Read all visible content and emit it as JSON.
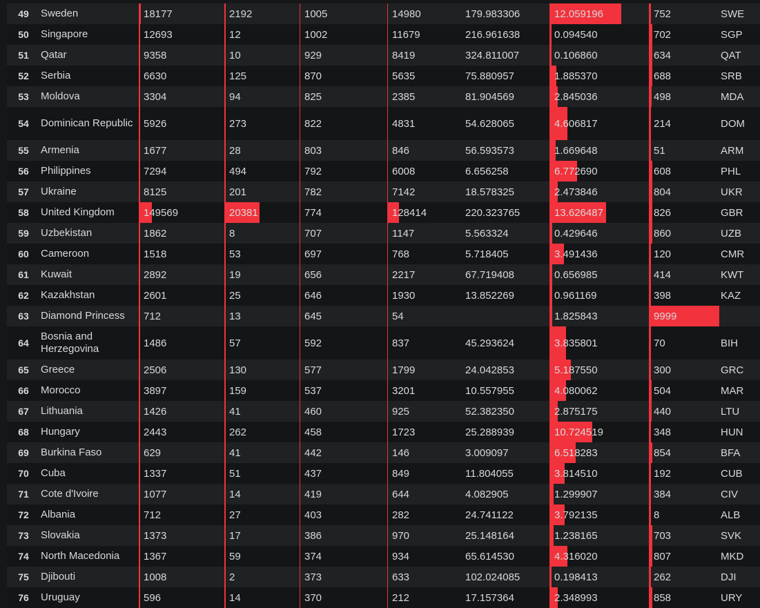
{
  "colors": {
    "bar": "#f2323c",
    "row_odd": "#1f2123",
    "row_even": "#141517",
    "text": "#d8d9da"
  },
  "rows": [
    {
      "rank": "49",
      "country": "Sweden",
      "cases": "18177",
      "deaths": "2192",
      "rank2": "1005",
      "active": "14980",
      "per_million": "179.983306",
      "mortality": "12.059196",
      "code_num": "752",
      "iso": "SWE",
      "cases_frac": 0.02,
      "deaths_frac": 0.02,
      "active_frac": 0.01,
      "mort_frac": 0.71,
      "num_frac": 0.02
    },
    {
      "rank": "50",
      "country": "Singapore",
      "cases": "12693",
      "deaths": "12",
      "rank2": "1002",
      "active": "11679",
      "per_million": "216.961638",
      "mortality": "0.094540",
      "code_num": "702",
      "iso": "SGP",
      "cases_frac": 0.01,
      "deaths_frac": 0,
      "active_frac": 0.01,
      "mort_frac": 0.02,
      "num_frac": 0.05
    },
    {
      "rank": "51",
      "country": "Qatar",
      "cases": "9358",
      "deaths": "10",
      "rank2": "929",
      "active": "8419",
      "per_million": "324.811007",
      "mortality": "0.106860",
      "code_num": "634",
      "iso": "QAT",
      "cases_frac": 0,
      "deaths_frac": 0,
      "active_frac": 0,
      "mort_frac": 0.02,
      "num_frac": 0.05
    },
    {
      "rank": "52",
      "country": "Serbia",
      "cases": "6630",
      "deaths": "125",
      "rank2": "870",
      "active": "5635",
      "per_million": "75.880957",
      "mortality": "1.885370",
      "code_num": "688",
      "iso": "SRB",
      "cases_frac": 0.01,
      "deaths_frac": 0.01,
      "active_frac": 0.01,
      "mort_frac": 0.07,
      "num_frac": 0.05
    },
    {
      "rank": "53",
      "country": "Moldova",
      "cases": "3304",
      "deaths": "94",
      "rank2": "825",
      "active": "2385",
      "per_million": "81.904569",
      "mortality": "2.845036",
      "code_num": "498",
      "iso": "MDA",
      "cases_frac": 0.01,
      "deaths_frac": 0.01,
      "active_frac": 0.01,
      "mort_frac": 0.08,
      "num_frac": 0.04
    },
    {
      "rank": "54",
      "country": "Dominican Republic",
      "cases": "5926",
      "deaths": "273",
      "rank2": "822",
      "active": "4831",
      "per_million": "54.628065",
      "mortality": "4.606817",
      "code_num": "214",
      "iso": "DOM",
      "cases_frac": 0.01,
      "deaths_frac": 0.01,
      "active_frac": 0.01,
      "mort_frac": 0.18,
      "num_frac": 0.02
    },
    {
      "rank": "55",
      "country": "Armenia",
      "cases": "1677",
      "deaths": "28",
      "rank2": "803",
      "active": "846",
      "per_million": "56.593573",
      "mortality": "1.669648",
      "code_num": "51",
      "iso": "ARM",
      "cases_frac": 0,
      "deaths_frac": 0,
      "active_frac": 0,
      "mort_frac": 0.06,
      "num_frac": 0
    },
    {
      "rank": "56",
      "country": "Philippines",
      "cases": "7294",
      "deaths": "494",
      "rank2": "792",
      "active": "6008",
      "per_million": "6.656258",
      "mortality": "6.772690",
      "code_num": "608",
      "iso": "PHL",
      "cases_frac": 0.01,
      "deaths_frac": 0.02,
      "active_frac": 0.01,
      "mort_frac": 0.27,
      "num_frac": 0.05
    },
    {
      "rank": "57",
      "country": "Ukraine",
      "cases": "8125",
      "deaths": "201",
      "rank2": "782",
      "active": "7142",
      "per_million": "18.578325",
      "mortality": "2.473846",
      "code_num": "804",
      "iso": "UKR",
      "cases_frac": 0.01,
      "deaths_frac": 0.01,
      "active_frac": 0.01,
      "mort_frac": 0.08,
      "num_frac": 0.05
    },
    {
      "rank": "58",
      "country": "United Kingdom",
      "cases": "149569",
      "deaths": "20381",
      "rank2": "774",
      "active": "128414",
      "per_million": "220.323765",
      "mortality": "13.626487",
      "code_num": "826",
      "iso": "GBR",
      "cases_frac": 0.15,
      "deaths_frac": 0.45,
      "active_frac": 0.16,
      "mort_frac": 0.56,
      "num_frac": 0.05
    },
    {
      "rank": "59",
      "country": "Uzbekistan",
      "cases": "1862",
      "deaths": "8",
      "rank2": "707",
      "active": "1147",
      "per_million": "5.563324",
      "mortality": "0.429646",
      "code_num": "860",
      "iso": "UZB",
      "cases_frac": 0,
      "deaths_frac": 0,
      "active_frac": 0,
      "mort_frac": 0.03,
      "num_frac": 0.05
    },
    {
      "rank": "60",
      "country": "Cameroon",
      "cases": "1518",
      "deaths": "53",
      "rank2": "697",
      "active": "768",
      "per_million": "5.718405",
      "mortality": "3.491436",
      "code_num": "120",
      "iso": "CMR",
      "cases_frac": 0,
      "deaths_frac": 0,
      "active_frac": 0,
      "mort_frac": 0.14,
      "num_frac": 0
    },
    {
      "rank": "61",
      "country": "Kuwait",
      "cases": "2892",
      "deaths": "19",
      "rank2": "656",
      "active": "2217",
      "per_million": "67.719408",
      "mortality": "0.656985",
      "code_num": "414",
      "iso": "KWT",
      "cases_frac": 0,
      "deaths_frac": 0,
      "active_frac": 0,
      "mort_frac": 0.03,
      "num_frac": 0.03
    },
    {
      "rank": "62",
      "country": "Kazakhstan",
      "cases": "2601",
      "deaths": "25",
      "rank2": "646",
      "active": "1930",
      "per_million": "13.852269",
      "mortality": "0.961169",
      "code_num": "398",
      "iso": "KAZ",
      "cases_frac": 0,
      "deaths_frac": 0,
      "active_frac": 0,
      "mort_frac": 0.03,
      "num_frac": 0.03
    },
    {
      "rank": "63",
      "country": "Diamond Princess",
      "cases": "712",
      "deaths": "13",
      "rank2": "645",
      "active": "54",
      "per_million": "",
      "mortality": "1.825843",
      "code_num": "9999",
      "iso": "",
      "cases_frac": 0,
      "deaths_frac": 0,
      "active_frac": 0,
      "mort_frac": 0.03,
      "num_frac": 1.0
    },
    {
      "rank": "64",
      "country": "Bosnia and Herzegovina",
      "cases": "1486",
      "deaths": "57",
      "rank2": "592",
      "active": "837",
      "per_million": "45.293624",
      "mortality": "3.835801",
      "code_num": "70",
      "iso": "BIH",
      "cases_frac": 0,
      "deaths_frac": 0,
      "active_frac": 0,
      "mort_frac": 0.16,
      "num_frac": 0
    },
    {
      "rank": "65",
      "country": "Greece",
      "cases": "2506",
      "deaths": "130",
      "rank2": "577",
      "active": "1799",
      "per_million": "24.042853",
      "mortality": "5.187550",
      "code_num": "300",
      "iso": "GRC",
      "cases_frac": 0,
      "deaths_frac": 0,
      "active_frac": 0,
      "mort_frac": 0.21,
      "num_frac": 0
    },
    {
      "rank": "66",
      "country": "Morocco",
      "cases": "3897",
      "deaths": "159",
      "rank2": "537",
      "active": "3201",
      "per_million": "10.557955",
      "mortality": "4.080062",
      "code_num": "504",
      "iso": "MAR",
      "cases_frac": 0,
      "deaths_frac": 0,
      "active_frac": 0,
      "mort_frac": 0.16,
      "num_frac": 0.04
    },
    {
      "rank": "67",
      "country": "Lithuania",
      "cases": "1426",
      "deaths": "41",
      "rank2": "460",
      "active": "925",
      "per_million": "52.382350",
      "mortality": "2.875175",
      "code_num": "440",
      "iso": "LTU",
      "cases_frac": 0,
      "deaths_frac": 0,
      "active_frac": 0,
      "mort_frac": 0.08,
      "num_frac": 0.04
    },
    {
      "rank": "68",
      "country": "Hungary",
      "cases": "2443",
      "deaths": "262",
      "rank2": "458",
      "active": "1723",
      "per_million": "25.288939",
      "mortality": "10.724519",
      "code_num": "348",
      "iso": "HUN",
      "cases_frac": 0,
      "deaths_frac": 0.01,
      "active_frac": 0,
      "mort_frac": 0.42,
      "num_frac": 0
    },
    {
      "rank": "69",
      "country": "Burkina Faso",
      "cases": "629",
      "deaths": "41",
      "rank2": "442",
      "active": "146",
      "per_million": "3.009097",
      "mortality": "6.518283",
      "code_num": "854",
      "iso": "BFA",
      "cases_frac": 0,
      "deaths_frac": 0,
      "active_frac": 0,
      "mort_frac": 0.26,
      "num_frac": 0.05
    },
    {
      "rank": "70",
      "country": "Cuba",
      "cases": "1337",
      "deaths": "51",
      "rank2": "437",
      "active": "849",
      "per_million": "11.804055",
      "mortality": "3.814510",
      "code_num": "192",
      "iso": "CUB",
      "cases_frac": 0,
      "deaths_frac": 0,
      "active_frac": 0,
      "mort_frac": 0.15,
      "num_frac": 0.02
    },
    {
      "rank": "71",
      "country": "Cote d'Ivoire",
      "cases": "1077",
      "deaths": "14",
      "rank2": "419",
      "active": "644",
      "per_million": "4.082905",
      "mortality": "1.299907",
      "code_num": "384",
      "iso": "CIV",
      "cases_frac": 0,
      "deaths_frac": 0,
      "active_frac": 0,
      "mort_frac": 0.04,
      "num_frac": 0.03
    },
    {
      "rank": "72",
      "country": "Albania",
      "cases": "712",
      "deaths": "27",
      "rank2": "403",
      "active": "282",
      "per_million": "24.741122",
      "mortality": "3.792135",
      "code_num": "8",
      "iso": "ALB",
      "cases_frac": 0,
      "deaths_frac": 0,
      "active_frac": 0,
      "mort_frac": 0.15,
      "num_frac": 0
    },
    {
      "rank": "73",
      "country": "Slovakia",
      "cases": "1373",
      "deaths": "17",
      "rank2": "386",
      "active": "970",
      "per_million": "25.148164",
      "mortality": "1.238165",
      "code_num": "703",
      "iso": "SVK",
      "cases_frac": 0,
      "deaths_frac": 0,
      "active_frac": 0,
      "mort_frac": 0.04,
      "num_frac": 0.05
    },
    {
      "rank": "74",
      "country": "North Macedonia",
      "cases": "1367",
      "deaths": "59",
      "rank2": "374",
      "active": "934",
      "per_million": "65.614530",
      "mortality": "4.316020",
      "code_num": "807",
      "iso": "MKD",
      "cases_frac": 0,
      "deaths_frac": 0,
      "active_frac": 0,
      "mort_frac": 0.18,
      "num_frac": 0.05
    },
    {
      "rank": "75",
      "country": "Djibouti",
      "cases": "1008",
      "deaths": "2",
      "rank2": "373",
      "active": "633",
      "per_million": "102.024085",
      "mortality": "0.198413",
      "code_num": "262",
      "iso": "DJI",
      "cases_frac": 0,
      "deaths_frac": 0,
      "active_frac": 0,
      "mort_frac": 0,
      "num_frac": 0
    },
    {
      "rank": "76",
      "country": "Uruguay",
      "cases": "596",
      "deaths": "14",
      "rank2": "370",
      "active": "212",
      "per_million": "17.157364",
      "mortality": "2.348993",
      "code_num": "858",
      "iso": "URY",
      "cases_frac": 0,
      "deaths_frac": 0,
      "active_frac": 0,
      "mort_frac": 0.08,
      "num_frac": 0.05
    }
  ]
}
